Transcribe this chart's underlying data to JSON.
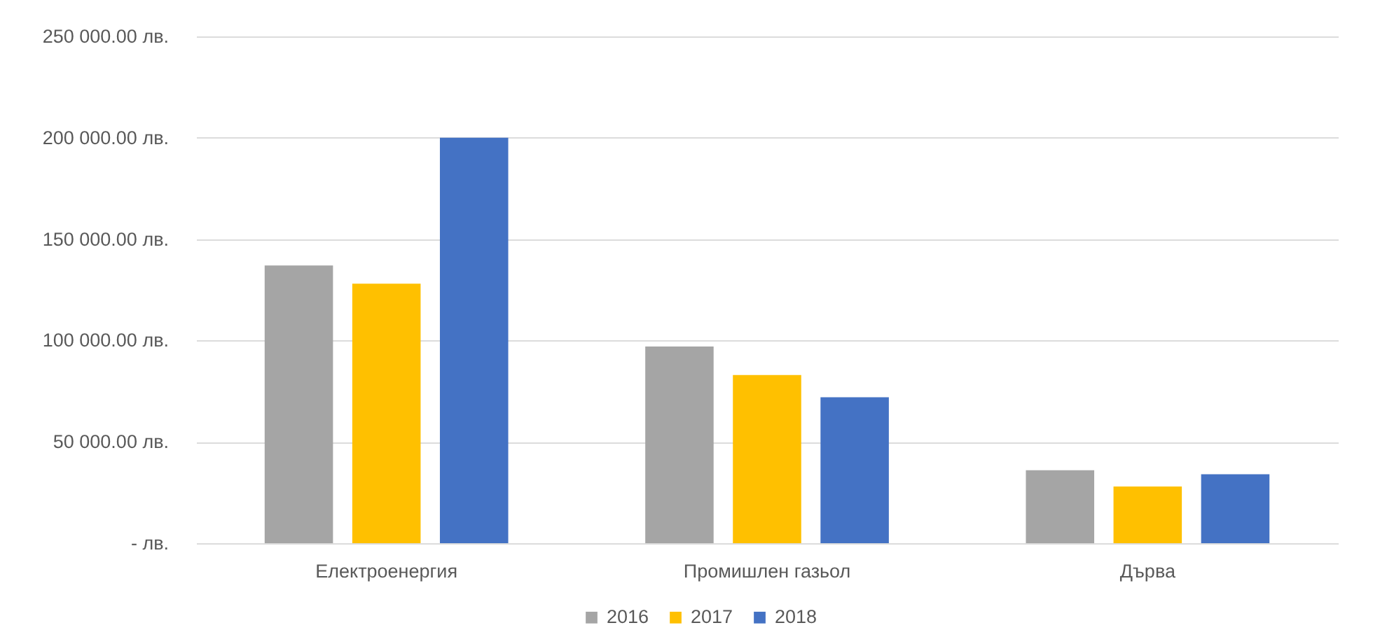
{
  "chart_data": {
    "type": "bar",
    "categories": [
      "Електроенергия",
      "Промишлен газьол",
      "Дърва"
    ],
    "series": [
      {
        "name": "2016",
        "color": "#a5a5a5",
        "values": [
          137000,
          97000,
          36000
        ]
      },
      {
        "name": "2017",
        "color": "#ffc000",
        "values": [
          128000,
          83000,
          28000
        ]
      },
      {
        "name": "2018",
        "color": "#4472c4",
        "values": [
          200000,
          72000,
          34000
        ]
      }
    ],
    "ylim": [
      0,
      250000
    ],
    "yticks": [
      {
        "value": 0,
        "label": "-   лв."
      },
      {
        "value": 50000,
        "label": "50 000.00 лв."
      },
      {
        "value": 100000,
        "label": "100 000.00 лв."
      },
      {
        "value": 150000,
        "label": "150 000.00 лв."
      },
      {
        "value": 200000,
        "label": "200 000.00 лв."
      },
      {
        "value": 250000,
        "label": "250 000.00 лв."
      }
    ],
    "grid": "y",
    "legend": "bottom"
  }
}
